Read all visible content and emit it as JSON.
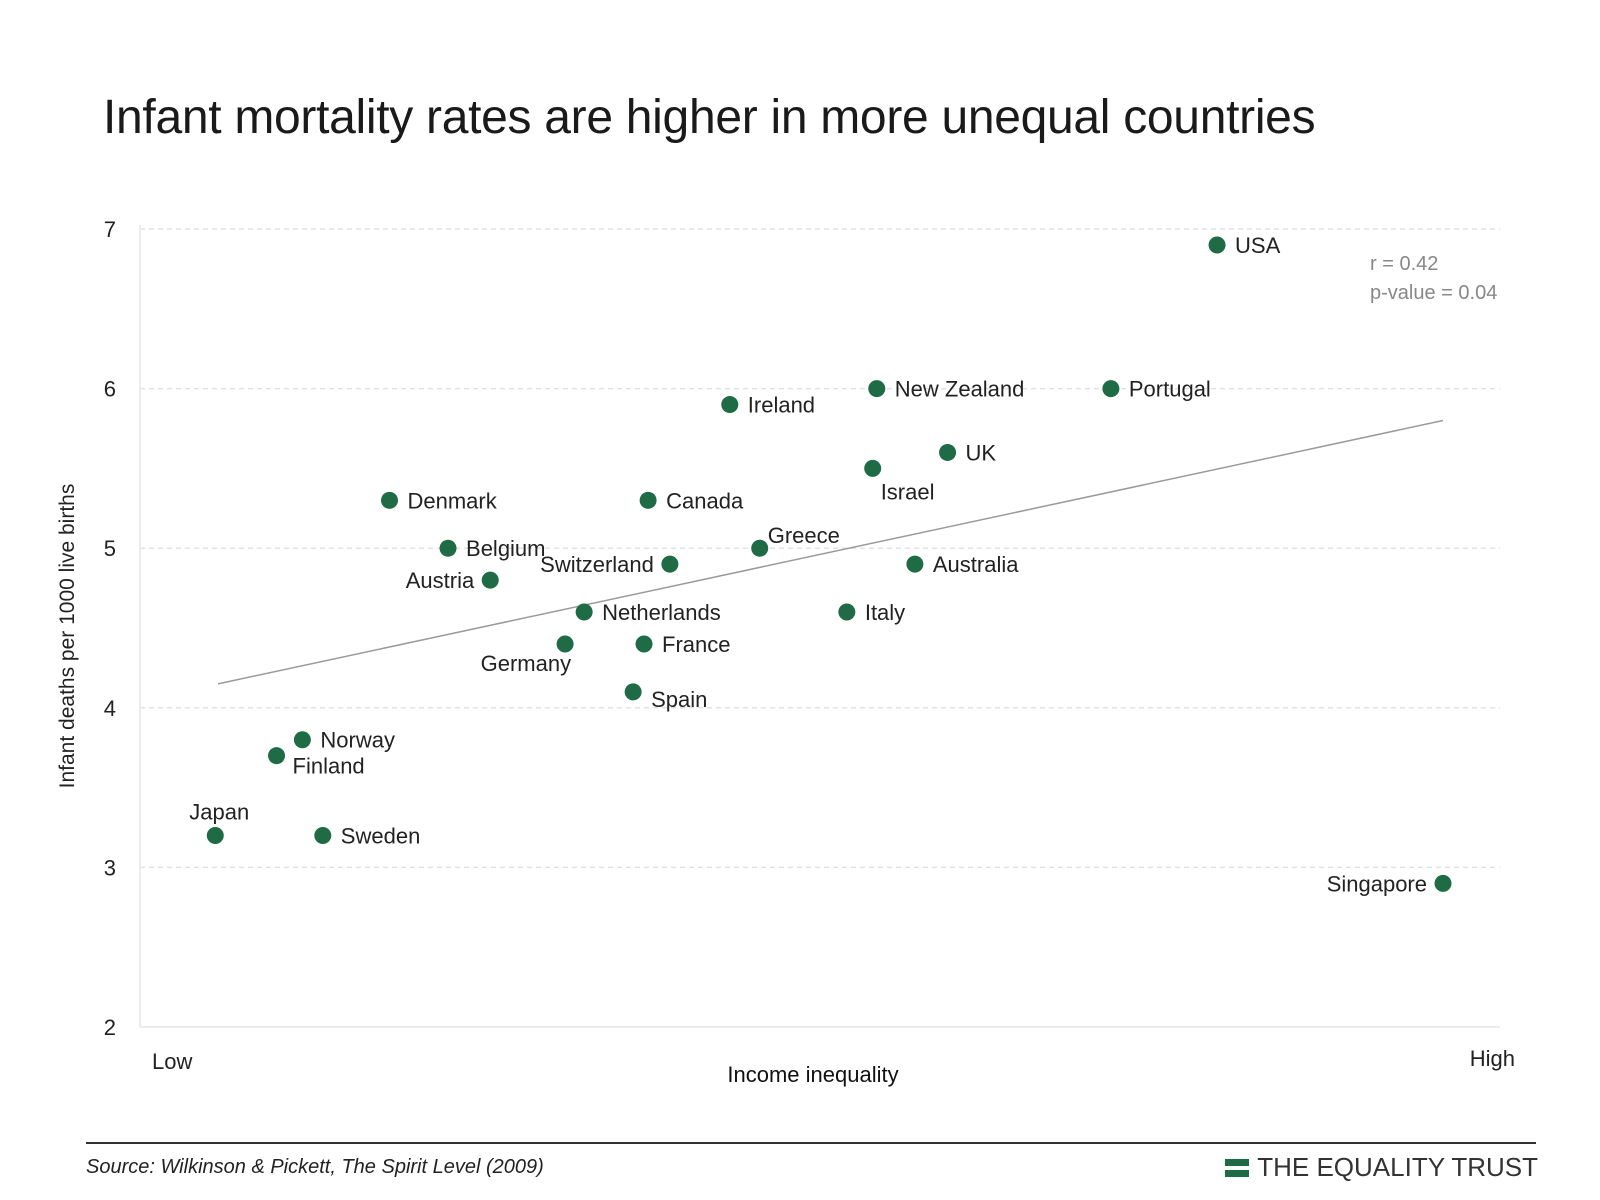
{
  "title": "Infant mortality rates are higher in more unequal countries",
  "source": "Source: Wilkinson & Pickett, The Spirit Level (2009)",
  "brand": "THE EQUALITY TRUST",
  "colors": {
    "point": "#1e6b45",
    "trend": "#9a9a9a",
    "grid": "#e2e2e2",
    "brand": "#1e6b45"
  },
  "chart_data": {
    "type": "scatter",
    "title": "Infant mortality rates are higher in more unequal countries",
    "xlabel": "Income inequality",
    "ylabel": "Infant deaths per 1000 live births",
    "x_low_label": "Low",
    "x_high_label": "High",
    "xlim": [
      0,
      100
    ],
    "ylim": [
      2,
      7
    ],
    "y_ticks": [
      2,
      3,
      4,
      5,
      6,
      7
    ],
    "grid": true,
    "stats": {
      "r": "r = 0.42",
      "p": "p-value = 0.04"
    },
    "trend": {
      "x": [
        6,
        96
      ],
      "y": [
        4.15,
        5.8
      ]
    },
    "points": [
      {
        "name": "USA",
        "x": 79.4,
        "y": 6.9,
        "anchor": "right"
      },
      {
        "name": "Portugal",
        "x": 71.6,
        "y": 6.0,
        "anchor": "right"
      },
      {
        "name": "New Zealand",
        "x": 54.4,
        "y": 6.0,
        "anchor": "right"
      },
      {
        "name": "Ireland",
        "x": 43.6,
        "y": 5.9,
        "anchor": "right"
      },
      {
        "name": "UK",
        "x": 59.6,
        "y": 5.6,
        "anchor": "right"
      },
      {
        "name": "Israel",
        "x": 54.1,
        "y": 5.5,
        "anchor": "below"
      },
      {
        "name": "Denmark",
        "x": 18.6,
        "y": 5.3,
        "anchor": "right"
      },
      {
        "name": "Canada",
        "x": 37.6,
        "y": 5.3,
        "anchor": "right"
      },
      {
        "name": "Belgium",
        "x": 22.9,
        "y": 5.0,
        "anchor": "right"
      },
      {
        "name": "Greece",
        "x": 45.8,
        "y": 5.0,
        "anchor": "above-right"
      },
      {
        "name": "Switzerland",
        "x": 39.2,
        "y": 4.9,
        "anchor": "left"
      },
      {
        "name": "Australia",
        "x": 57.2,
        "y": 4.9,
        "anchor": "right"
      },
      {
        "name": "Austria",
        "x": 26.0,
        "y": 4.8,
        "anchor": "left"
      },
      {
        "name": "Netherlands",
        "x": 32.9,
        "y": 4.6,
        "anchor": "right"
      },
      {
        "name": "Italy",
        "x": 52.2,
        "y": 4.6,
        "anchor": "right"
      },
      {
        "name": "Germany",
        "x": 31.5,
        "y": 4.4,
        "anchor": "below-left"
      },
      {
        "name": "France",
        "x": 37.3,
        "y": 4.4,
        "anchor": "right"
      },
      {
        "name": "Spain",
        "x": 36.5,
        "y": 4.1,
        "anchor": "below-right"
      },
      {
        "name": "Norway",
        "x": 12.2,
        "y": 3.8,
        "anchor": "right"
      },
      {
        "name": "Finland",
        "x": 10.3,
        "y": 3.7,
        "anchor": "below-right"
      },
      {
        "name": "Japan",
        "x": 5.8,
        "y": 3.2,
        "anchor": "above"
      },
      {
        "name": "Sweden",
        "x": 13.7,
        "y": 3.2,
        "anchor": "right"
      },
      {
        "name": "Singapore",
        "x": 96.0,
        "y": 2.9,
        "anchor": "left"
      }
    ]
  }
}
